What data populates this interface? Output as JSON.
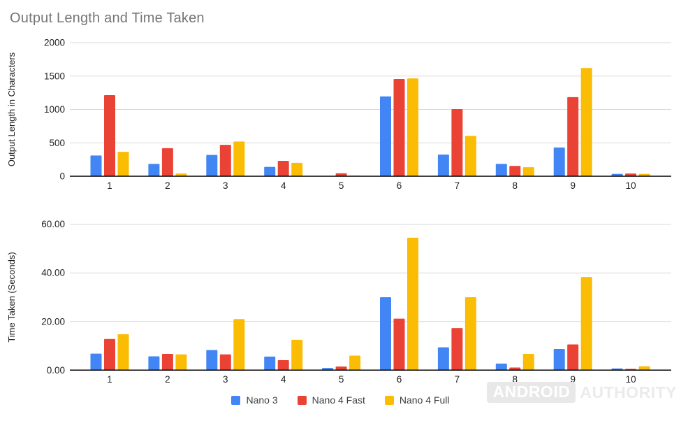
{
  "title": "Output Length and Time Taken",
  "colors": {
    "blue": "#4285F4",
    "red": "#EA4335",
    "yellow": "#FBBC04",
    "gridline": "#d9d9d9",
    "axis": "#000000",
    "title_text": "#757575",
    "tick_text": "#222222",
    "legend_text": "#3c4043"
  },
  "legend": {
    "position": "bottom-center",
    "items": [
      {
        "label": "Nano 3",
        "color": "#4285F4"
      },
      {
        "label": "Nano 4 Fast",
        "color": "#EA4335"
      },
      {
        "label": "Nano 4 Full",
        "color": "#FBBC04"
      }
    ]
  },
  "watermark": {
    "part1": "ANDROID",
    "part2": "AUTHORITY"
  },
  "chart_data": [
    {
      "type": "bar",
      "title": "Output Length and Time Taken",
      "ylabel": "Output Length in Characters",
      "xlabel": "",
      "grid": true,
      "categories": [
        "1",
        "2",
        "3",
        "4",
        "5",
        "6",
        "7",
        "8",
        "9",
        "10"
      ],
      "ylim": [
        0,
        2000
      ],
      "ytick_values": [
        0,
        500,
        1000,
        1500,
        2000
      ],
      "ytick_labels": [
        "0",
        "500",
        "1000",
        "1500",
        "2000"
      ],
      "series": [
        {
          "name": "Nano 3",
          "color": "#4285F4",
          "values": [
            310,
            185,
            320,
            140,
            0,
            1195,
            325,
            185,
            430,
            35
          ]
        },
        {
          "name": "Nano 4 Fast",
          "color": "#EA4335",
          "values": [
            1215,
            420,
            470,
            230,
            45,
            1455,
            1005,
            155,
            1185,
            40
          ]
        },
        {
          "name": "Nano 4 Full",
          "color": "#FBBC04",
          "values": [
            365,
            40,
            520,
            200,
            10,
            1465,
            605,
            135,
            1620,
            35
          ]
        }
      ]
    },
    {
      "type": "bar",
      "title": "",
      "ylabel": "Time Taken (Seconds)",
      "xlabel": "",
      "grid": true,
      "categories": [
        "1",
        "2",
        "3",
        "4",
        "5",
        "6",
        "7",
        "8",
        "9",
        "10"
      ],
      "ylim": [
        0,
        60
      ],
      "ytick_values": [
        0,
        20,
        40,
        60
      ],
      "ytick_labels": [
        "0.00",
        "20.00",
        "40.00",
        "60.00"
      ],
      "series": [
        {
          "name": "Nano 3",
          "color": "#4285F4",
          "values": [
            6.8,
            5.7,
            8.3,
            5.6,
            0.9,
            30.0,
            9.4,
            2.7,
            8.7,
            0.7
          ]
        },
        {
          "name": "Nano 4 Fast",
          "color": "#EA4335",
          "values": [
            12.8,
            6.7,
            6.5,
            4.1,
            1.5,
            21.2,
            17.3,
            1.1,
            10.6,
            0.5
          ]
        },
        {
          "name": "Nano 4 Full",
          "color": "#FBBC04",
          "values": [
            14.8,
            6.5,
            21.0,
            12.5,
            6.0,
            54.5,
            30.0,
            6.7,
            38.3,
            1.6
          ]
        }
      ]
    }
  ]
}
